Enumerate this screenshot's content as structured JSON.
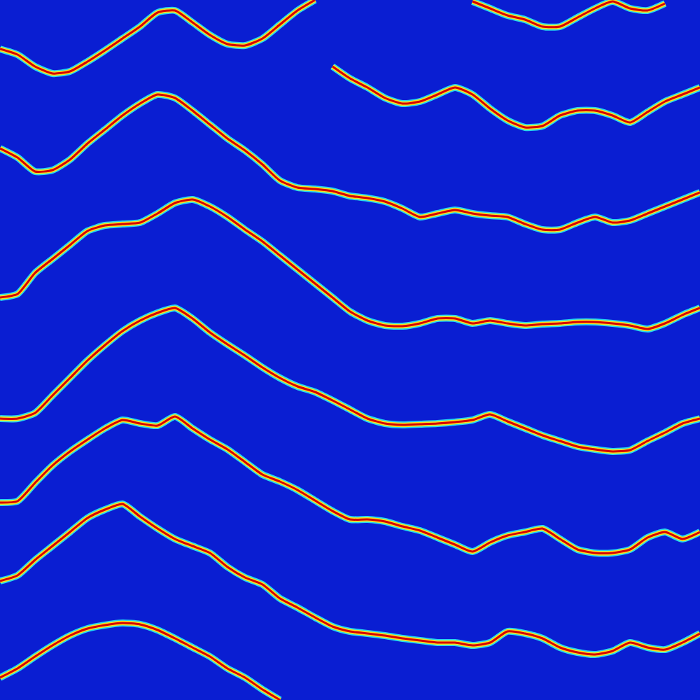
{
  "chart_data": {
    "type": "line",
    "color": "#d80000",
    "grid": false,
    "tick_labels": false,
    "xlim": [
      0,
      1000
    ],
    "ylim": [
      1000,
      0
    ],
    "x": [
      0,
      25,
      50,
      75,
      100,
      125,
      150,
      175,
      200,
      225,
      250,
      275,
      300,
      325,
      350,
      375,
      400,
      425,
      450,
      475,
      500,
      525,
      550,
      575,
      600,
      625,
      650,
      675,
      700,
      725,
      750,
      775,
      800,
      825,
      850,
      875,
      900,
      925,
      950,
      975,
      1000
    ],
    "series": [
      {
        "values": [
          70,
          78,
          95,
          105,
          102,
          88,
          72,
          55,
          38,
          18,
          15,
          32,
          50,
          63,
          65,
          55,
          35,
          15,
          0,
          null,
          null,
          null,
          null,
          null,
          null,
          null,
          null,
          2,
          12,
          22,
          28,
          38,
          38,
          25,
          12,
          2,
          12,
          15,
          5,
          null,
          null
        ]
      },
      {
        "values": [
          null,
          null,
          null,
          null,
          null,
          null,
          null,
          null,
          null,
          null,
          null,
          null,
          null,
          null,
          null,
          null,
          null,
          null,
          null,
          95,
          112,
          125,
          140,
          148,
          145,
          135,
          125,
          135,
          155,
          172,
          182,
          180,
          165,
          158,
          158,
          165,
          175,
          160,
          145,
          135,
          125
        ]
      },
      {
        "values": [
          212,
          225,
          245,
          243,
          228,
          205,
          185,
          165,
          148,
          135,
          140,
          158,
          178,
          198,
          215,
          235,
          258,
          268,
          270,
          273,
          280,
          283,
          288,
          298,
          310,
          305,
          300,
          305,
          308,
          310,
          320,
          328,
          328,
          318,
          310,
          318,
          315,
          305,
          295,
          285,
          275
        ]
      },
      {
        "values": [
          425,
          420,
          390,
          370,
          350,
          330,
          322,
          320,
          318,
          305,
          290,
          285,
          295,
          310,
          328,
          345,
          365,
          385,
          405,
          425,
          445,
          458,
          465,
          466,
          462,
          455,
          455,
          462,
          458,
          462,
          465,
          463,
          462,
          460,
          460,
          462,
          465,
          470,
          462,
          450,
          440
        ]
      },
      {
        "values": [
          598,
          598,
          590,
          565,
          540,
          515,
          493,
          473,
          458,
          447,
          440,
          455,
          475,
          492,
          508,
          525,
          540,
          552,
          560,
          572,
          585,
          598,
          605,
          607,
          606,
          605,
          603,
          600,
          592,
          602,
          612,
          622,
          630,
          638,
          642,
          645,
          643,
          630,
          618,
          605,
          598
        ]
      },
      {
        "values": [
          718,
          716,
          690,
          665,
          645,
          628,
          612,
          600,
          605,
          608,
          595,
          612,
          628,
          642,
          660,
          678,
          688,
          700,
          715,
          730,
          742,
          742,
          745,
          752,
          758,
          768,
          778,
          788,
          775,
          765,
          760,
          755,
          770,
          785,
          790,
          790,
          785,
          768,
          760,
          770,
          760
        ]
      },
      {
        "values": [
          830,
          822,
          800,
          780,
          760,
          740,
          728,
          720,
          738,
          755,
          770,
          780,
          790,
          810,
          825,
          835,
          855,
          868,
          882,
          895,
          902,
          905,
          908,
          912,
          915,
          918,
          918,
          922,
          918,
          902,
          905,
          912,
          925,
          932,
          935,
          930,
          918,
          925,
          928,
          918,
          905
        ]
      },
      {
        "values": [
          968,
          955,
          938,
          922,
          908,
          898,
          893,
          890,
          892,
          900,
          912,
          925,
          938,
          955,
          968,
          985,
          1000,
          null,
          null,
          null,
          null,
          null,
          null,
          null,
          null,
          null,
          null,
          null,
          null,
          null,
          null,
          null,
          null,
          null,
          null,
          null,
          null,
          null,
          null,
          null,
          null
        ]
      }
    ]
  }
}
